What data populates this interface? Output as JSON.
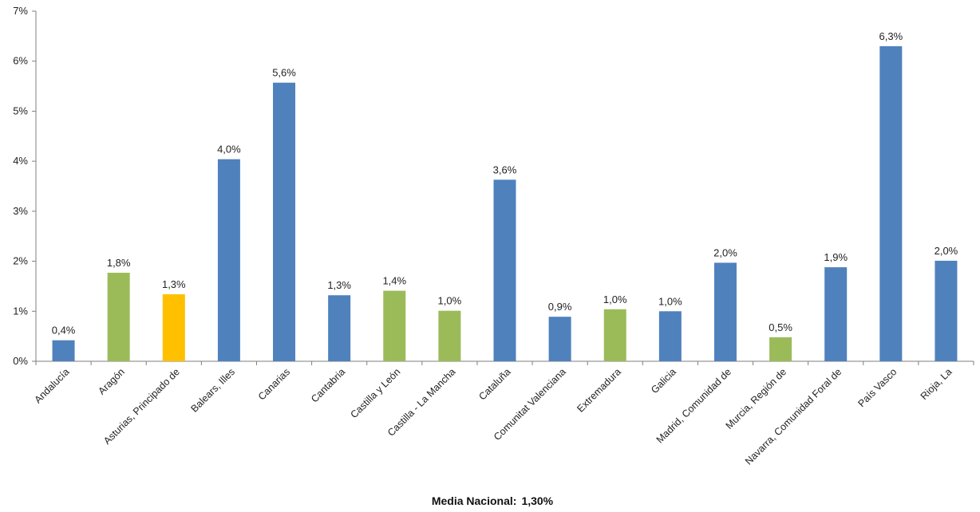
{
  "chart_data": {
    "type": "bar",
    "categories": [
      "Andalucía",
      "Aragón",
      "Asturias, Principado de",
      "Balears, Illes",
      "Canarias",
      "Cantabria",
      "Castilla y León",
      "Castilla - La Mancha",
      "Cataluña",
      "Comunitat Valenciana",
      "Extremadura",
      "Galicia",
      "Madrid, Comunidad de",
      "Murcia, Región de",
      "Navarra, Comunidad Foral de",
      "País Vasco",
      "Rioja, La"
    ],
    "values": [
      0.42,
      1.77,
      1.34,
      4.04,
      5.57,
      1.32,
      1.41,
      1.01,
      3.63,
      0.89,
      1.04,
      1.0,
      1.97,
      0.48,
      1.88,
      6.3,
      2.01
    ],
    "data_labels": [
      "0,4%",
      "1,8%",
      "1,3%",
      "4,0%",
      "5,6%",
      "1,3%",
      "1,4%",
      "1,0%",
      "3,6%",
      "0,9%",
      "1,0%",
      "1,0%",
      "2,0%",
      "0,5%",
      "1,9%",
      "6,3%",
      "2,0%"
    ],
    "bar_colors": [
      "#4f81bd",
      "#9bbb59",
      "#ffc000",
      "#4f81bd",
      "#4f81bd",
      "#4f81bd",
      "#9bbb59",
      "#9bbb59",
      "#4f81bd",
      "#4f81bd",
      "#9bbb59",
      "#4f81bd",
      "#4f81bd",
      "#9bbb59",
      "#4f81bd",
      "#4f81bd",
      "#4f81bd"
    ],
    "ylim": [
      0,
      7
    ],
    "yticks": [
      0,
      1,
      2,
      3,
      4,
      5,
      6,
      7
    ],
    "ytick_labels": [
      "0%",
      "1%",
      "2%",
      "3%",
      "4%",
      "5%",
      "6%",
      "7%"
    ],
    "grid": false,
    "legend": "none",
    "title": "",
    "xlabel": "",
    "ylabel": ""
  },
  "footer": {
    "label": "Media Nacional:",
    "value": "1,30%"
  }
}
